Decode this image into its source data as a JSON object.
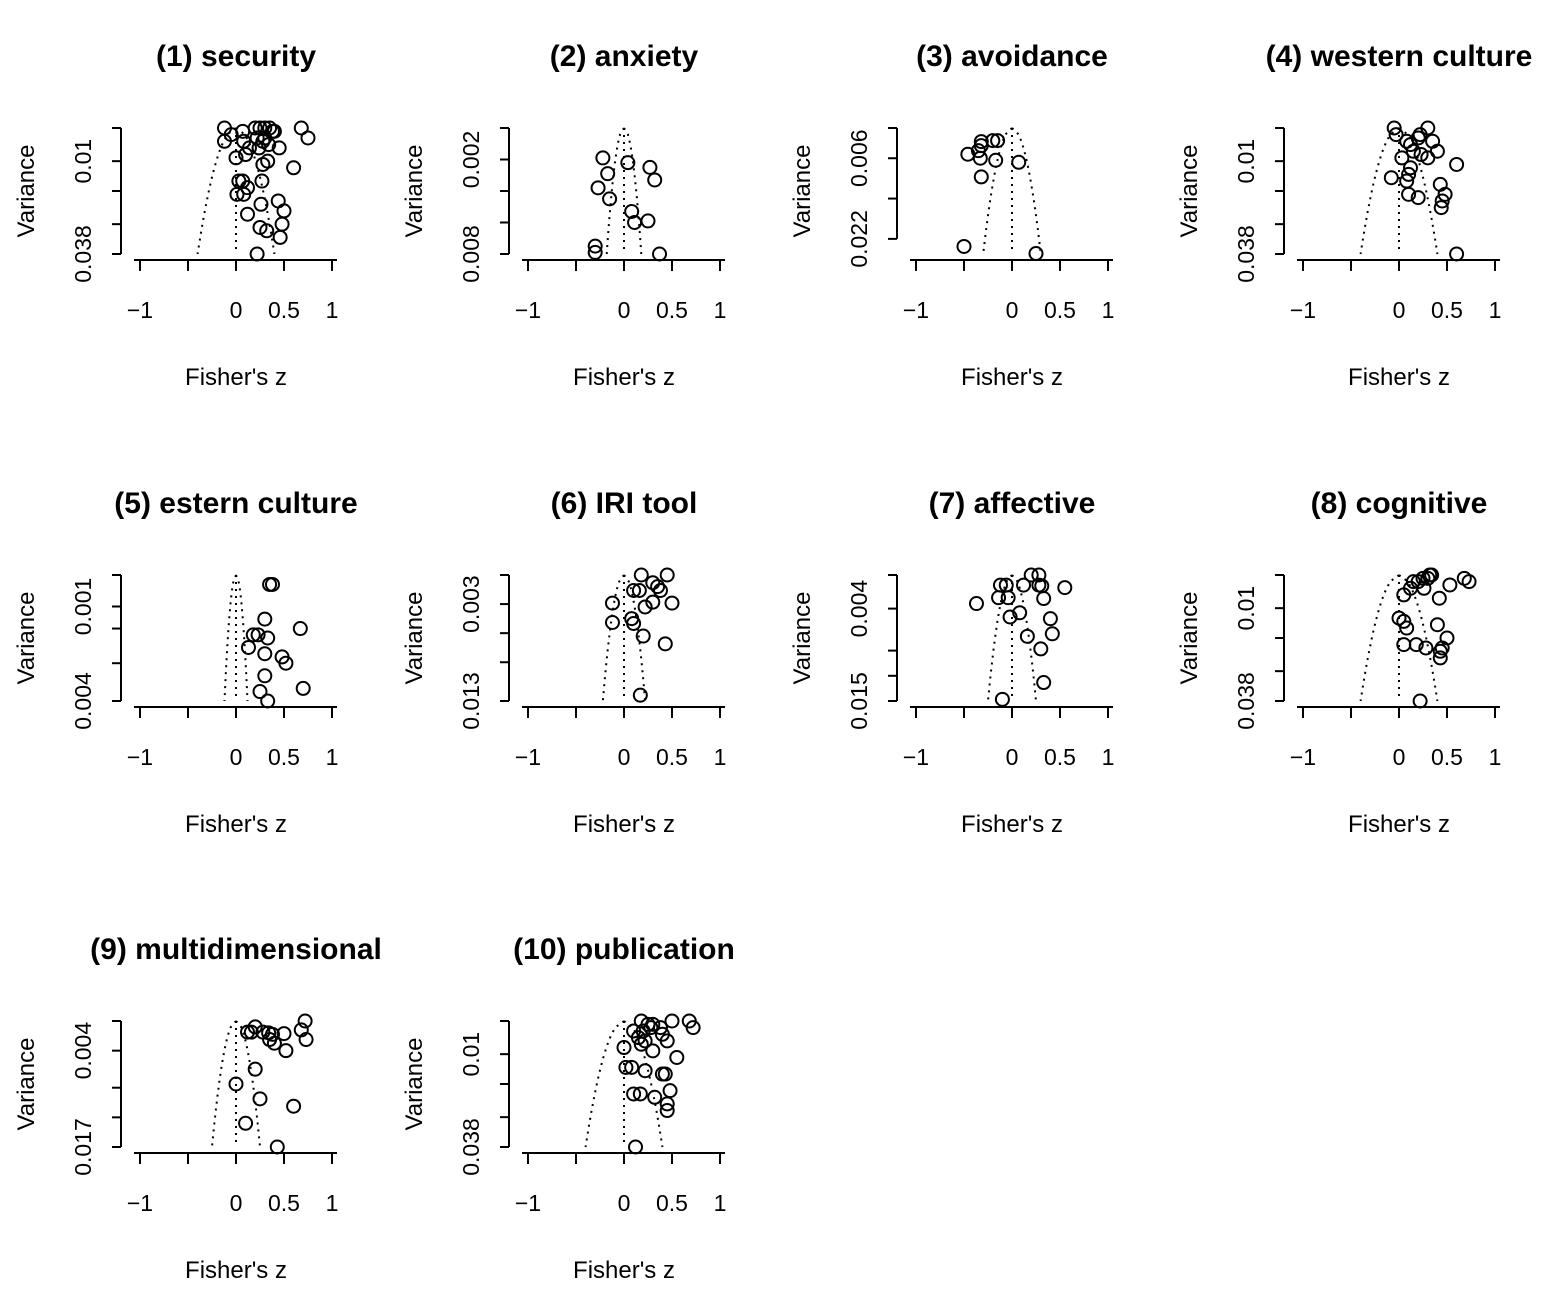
{
  "figure": {
    "xlabel": "Fisher's z",
    "ylabel": "Variance"
  },
  "chart_data": [
    {
      "type": "scatter",
      "title": "(1) security",
      "xlabel": "Fisher's z",
      "ylabel": "Variance",
      "xlim": [
        -1,
        1
      ],
      "xticks": [
        -1,
        0,
        0.5,
        1
      ],
      "xtick_labels": [
        "-1",
        "0",
        "0.5",
        "1"
      ],
      "yticks": [
        0,
        0.01,
        0.019,
        0.029,
        0.038
      ],
      "ytick_labels": [
        "0.01",
        "0.038"
      ],
      "ylim": [
        0,
        0.038
      ],
      "funnel": {
        "center": 0.0,
        "half_width_at_max": 0.4
      },
      "points": [
        [
          -0.12,
          0.0
        ],
        [
          -0.12,
          0.004
        ],
        [
          -0.05,
          0.002
        ],
        [
          0.07,
          0.001
        ],
        [
          0.2,
          0.0
        ],
        [
          0.25,
          0.0
        ],
        [
          0.3,
          0.0
        ],
        [
          0.35,
          0.0
        ],
        [
          0.38,
          0.001
        ],
        [
          0.4,
          0.001
        ],
        [
          0.68,
          0.0
        ],
        [
          0.75,
          0.003
        ],
        [
          0.08,
          0.004
        ],
        [
          0.14,
          0.006
        ],
        [
          0.22,
          0.003
        ],
        [
          0.24,
          0.006
        ],
        [
          0.28,
          0.004
        ],
        [
          0.34,
          0.005
        ],
        [
          0.45,
          0.006
        ],
        [
          0.3,
          0.003
        ],
        [
          0.0,
          0.009
        ],
        [
          0.1,
          0.008
        ],
        [
          0.28,
          0.011
        ],
        [
          0.6,
          0.012
        ],
        [
          0.33,
          0.01
        ],
        [
          0.03,
          0.016
        ],
        [
          0.07,
          0.016
        ],
        [
          0.12,
          0.018
        ],
        [
          0.27,
          0.016
        ],
        [
          0.01,
          0.02
        ],
        [
          0.08,
          0.02
        ],
        [
          0.26,
          0.023
        ],
        [
          0.44,
          0.022
        ],
        [
          0.5,
          0.025
        ],
        [
          0.12,
          0.026
        ],
        [
          0.25,
          0.03
        ],
        [
          0.32,
          0.031
        ],
        [
          0.48,
          0.029
        ],
        [
          0.46,
          0.033
        ],
        [
          0.22,
          0.038
        ]
      ]
    },
    {
      "type": "scatter",
      "title": "(2) anxiety",
      "xlabel": "Fisher's z",
      "ylabel": "Variance",
      "xlim": [
        -1,
        1
      ],
      "xticks": [
        -1,
        0,
        0.5,
        1
      ],
      "xtick_labels": [
        "-1",
        "0",
        "0.5",
        "1"
      ],
      "yticks": [
        0,
        0.002,
        0.004,
        0.006,
        0.008
      ],
      "ytick_labels": [
        "0.002",
        "0.008"
      ],
      "ylim": [
        0,
        0.008
      ],
      "funnel": {
        "center": 0.0,
        "half_width_at_max": 0.18
      },
      "points": [
        [
          -0.22,
          0.0019
        ],
        [
          0.04,
          0.0022
        ],
        [
          0.27,
          0.0025
        ],
        [
          -0.17,
          0.0029
        ],
        [
          0.32,
          0.0033
        ],
        [
          -0.27,
          0.0038
        ],
        [
          -0.15,
          0.0045
        ],
        [
          0.08,
          0.0053
        ],
        [
          0.11,
          0.006
        ],
        [
          0.25,
          0.0059
        ],
        [
          -0.3,
          0.0075
        ],
        [
          -0.3,
          0.0079
        ],
        [
          0.37,
          0.008
        ]
      ]
    },
    {
      "type": "scatter",
      "title": "(3) avoidance",
      "xlabel": "Fisher's z",
      "ylabel": "Variance",
      "xlim": [
        -1,
        1
      ],
      "xticks": [
        -1,
        0,
        0.5,
        1
      ],
      "xtick_labels": [
        "-1",
        "0",
        "0.5",
        "1"
      ],
      "yticks": [
        0,
        0.006,
        0.014,
        0.022
      ],
      "ytick_labels": [
        "0.006",
        "0.022"
      ],
      "ylim": [
        0,
        0.025
      ],
      "funnel": {
        "center": 0.0,
        "half_width_at_max": 0.3
      },
      "points": [
        [
          -0.35,
          0.0045
        ],
        [
          -0.32,
          0.0027
        ],
        [
          -0.32,
          0.0035
        ],
        [
          -0.2,
          0.0025
        ],
        [
          -0.15,
          0.0025
        ],
        [
          -0.33,
          0.006
        ],
        [
          -0.46,
          0.0052
        ],
        [
          -0.17,
          0.0064
        ],
        [
          0.07,
          0.0068
        ],
        [
          -0.32,
          0.0097
        ],
        [
          -0.5,
          0.0235
        ],
        [
          0.25,
          0.0249
        ]
      ]
    },
    {
      "type": "scatter",
      "title": "(4) western culture",
      "xlabel": "Fisher's z",
      "ylabel": "Variance",
      "xlim": [
        -1,
        1
      ],
      "xticks": [
        -1,
        0,
        0.5,
        1
      ],
      "xtick_labels": [
        "-1",
        "0",
        "0.5",
        "1"
      ],
      "yticks": [
        0,
        0.01,
        0.019,
        0.029,
        0.038
      ],
      "ytick_labels": [
        "0.01",
        "0.038"
      ],
      "ylim": [
        0,
        0.038
      ],
      "funnel": {
        "center": 0.0,
        "half_width_at_max": 0.4
      },
      "points": [
        [
          -0.05,
          0.0
        ],
        [
          -0.03,
          0.002
        ],
        [
          0.3,
          0.0
        ],
        [
          0.22,
          0.002
        ],
        [
          0.2,
          0.003
        ],
        [
          0.08,
          0.004
        ],
        [
          0.12,
          0.005
        ],
        [
          0.35,
          0.004
        ],
        [
          0.15,
          0.007
        ],
        [
          0.23,
          0.008
        ],
        [
          0.3,
          0.009
        ],
        [
          0.4,
          0.007
        ],
        [
          0.03,
          0.009
        ],
        [
          0.12,
          0.012
        ],
        [
          0.1,
          0.014
        ],
        [
          0.6,
          0.011
        ],
        [
          -0.08,
          0.015
        ],
        [
          0.08,
          0.016
        ],
        [
          0.43,
          0.017
        ],
        [
          0.1,
          0.02
        ],
        [
          0.2,
          0.021
        ],
        [
          0.48,
          0.02
        ],
        [
          0.45,
          0.022
        ],
        [
          0.44,
          0.024
        ],
        [
          0.6,
          0.038
        ]
      ]
    },
    {
      "type": "scatter",
      "title": "(5) estern culture",
      "xlabel": "Fisher's z",
      "ylabel": "Variance",
      "xlim": [
        -1,
        1
      ],
      "xticks": [
        -1,
        0,
        0.5,
        1
      ],
      "xtick_labels": [
        "-1",
        "0",
        "0.5",
        "1"
      ],
      "yticks": [
        0,
        0.001,
        0.0017,
        0.0028,
        0.004
      ],
      "ytick_labels": [
        "0.001",
        "0.004"
      ],
      "ylim": [
        0,
        0.004
      ],
      "funnel": {
        "center": 0.0,
        "half_width_at_max": 0.12
      },
      "points": [
        [
          0.35,
          0.0003
        ],
        [
          0.38,
          0.0003
        ],
        [
          0.3,
          0.0014
        ],
        [
          0.67,
          0.0017
        ],
        [
          0.18,
          0.0019
        ],
        [
          0.23,
          0.0019
        ],
        [
          0.33,
          0.002
        ],
        [
          0.13,
          0.0023
        ],
        [
          0.3,
          0.0025
        ],
        [
          0.48,
          0.0026
        ],
        [
          0.52,
          0.0028
        ],
        [
          0.3,
          0.0032
        ],
        [
          0.7,
          0.0036
        ],
        [
          0.25,
          0.0037
        ],
        [
          0.33,
          0.004
        ]
      ]
    },
    {
      "type": "scatter",
      "title": "(6) IRI tool",
      "xlabel": "Fisher's z",
      "ylabel": "Variance",
      "xlim": [
        -1,
        1
      ],
      "xticks": [
        -1,
        0,
        0.5,
        1
      ],
      "xtick_labels": [
        "-1",
        "0",
        "0.5",
        "1"
      ],
      "yticks": [
        0,
        0.003,
        0.006,
        0.009,
        0.013
      ],
      "ytick_labels": [
        "0.003",
        "0.013"
      ],
      "ylim": [
        0,
        0.013
      ],
      "funnel": {
        "center": 0.0,
        "half_width_at_max": 0.22
      },
      "points": [
        [
          0.18,
          0.0
        ],
        [
          0.45,
          0.0
        ],
        [
          0.3,
          0.0008
        ],
        [
          0.35,
          0.0012
        ],
        [
          0.1,
          0.0016
        ],
        [
          0.16,
          0.0016
        ],
        [
          0.38,
          0.0016
        ],
        [
          -0.12,
          0.0029
        ],
        [
          0.3,
          0.0028
        ],
        [
          0.5,
          0.0029
        ],
        [
          0.22,
          0.0033
        ],
        [
          0.08,
          0.0045
        ],
        [
          -0.12,
          0.0049
        ],
        [
          0.1,
          0.005
        ],
        [
          0.2,
          0.0063
        ],
        [
          0.43,
          0.0071
        ],
        [
          0.17,
          0.0124
        ]
      ]
    },
    {
      "type": "scatter",
      "title": "(7) affective",
      "xlabel": "Fisher's z",
      "ylabel": "Variance",
      "xlim": [
        -1,
        1
      ],
      "xticks": [
        -1,
        0,
        0.5,
        1
      ],
      "xtick_labels": [
        "-1",
        "0",
        "0.5",
        "1"
      ],
      "yticks": [
        0,
        0.004,
        0.009,
        0.012,
        0.015
      ],
      "ytick_labels": [
        "0.004",
        "0.015"
      ],
      "ylim": [
        0,
        0.015
      ],
      "funnel": {
        "center": 0.0,
        "half_width_at_max": 0.25
      },
      "points": [
        [
          0.2,
          0.0
        ],
        [
          0.28,
          0.0
        ],
        [
          -0.12,
          0.0012
        ],
        [
          -0.06,
          0.0012
        ],
        [
          0.12,
          0.0012
        ],
        [
          0.28,
          0.0012
        ],
        [
          0.55,
          0.0015
        ],
        [
          0.31,
          0.0013
        ],
        [
          -0.14,
          0.0027
        ],
        [
          -0.04,
          0.0027
        ],
        [
          0.33,
          0.0028
        ],
        [
          -0.37,
          0.0034
        ],
        [
          0.08,
          0.0045
        ],
        [
          -0.02,
          0.005
        ],
        [
          0.4,
          0.0052
        ],
        [
          0.16,
          0.0073
        ],
        [
          0.42,
          0.007
        ],
        [
          0.3,
          0.0088
        ],
        [
          0.33,
          0.0128
        ],
        [
          -0.1,
          0.0148
        ]
      ]
    },
    {
      "type": "scatter",
      "title": "(8) cognitive",
      "xlabel": "Fisher's z",
      "ylabel": "Variance",
      "xlim": [
        -1,
        1
      ],
      "xticks": [
        -1,
        0,
        0.5,
        1
      ],
      "xtick_labels": [
        "-1",
        "0",
        "0.5",
        "1"
      ],
      "yticks": [
        0,
        0.01,
        0.019,
        0.029,
        0.038
      ],
      "ytick_labels": [
        "0.01",
        "0.038"
      ],
      "ylim": [
        0,
        0.038
      ],
      "funnel": {
        "center": 0.0,
        "half_width_at_max": 0.4
      },
      "points": [
        [
          0.32,
          0.0
        ],
        [
          0.34,
          0.0
        ],
        [
          0.3,
          0.001
        ],
        [
          0.25,
          0.001
        ],
        [
          0.2,
          0.002
        ],
        [
          0.68,
          0.001
        ],
        [
          0.73,
          0.002
        ],
        [
          0.15,
          0.002
        ],
        [
          0.53,
          0.003
        ],
        [
          0.12,
          0.004
        ],
        [
          0.26,
          0.004
        ],
        [
          0.05,
          0.006
        ],
        [
          0.42,
          0.007
        ],
        [
          0.0,
          0.013
        ],
        [
          0.05,
          0.014
        ],
        [
          0.08,
          0.016
        ],
        [
          0.4,
          0.015
        ],
        [
          0.5,
          0.019
        ],
        [
          0.05,
          0.021
        ],
        [
          0.18,
          0.021
        ],
        [
          0.28,
          0.022
        ],
        [
          0.45,
          0.022
        ],
        [
          0.43,
          0.023
        ],
        [
          0.43,
          0.025
        ],
        [
          0.22,
          0.038
        ]
      ]
    },
    {
      "type": "scatter",
      "title": "(9) multidimensional",
      "xlabel": "Fisher's z",
      "ylabel": "Variance",
      "xlim": [
        -1,
        1
      ],
      "xticks": [
        -1,
        0,
        0.5,
        1
      ],
      "xtick_labels": [
        "-1",
        "0",
        "0.5",
        "1"
      ],
      "yticks": [
        0,
        0.004,
        0.009,
        0.013,
        0.017
      ],
      "ytick_labels": [
        "0.004",
        "0.017"
      ],
      "ylim": [
        0,
        0.017
      ],
      "funnel": {
        "center": 0.0,
        "half_width_at_max": 0.25
      },
      "points": [
        [
          0.2,
          0.0008
        ],
        [
          0.72,
          0.0
        ],
        [
          0.68,
          0.0012
        ],
        [
          0.73,
          0.0025
        ],
        [
          0.12,
          0.0015
        ],
        [
          0.16,
          0.0015
        ],
        [
          0.28,
          0.0015
        ],
        [
          0.34,
          0.0016
        ],
        [
          0.38,
          0.0018
        ],
        [
          0.5,
          0.0017
        ],
        [
          0.35,
          0.0025
        ],
        [
          0.4,
          0.003
        ],
        [
          0.52,
          0.004
        ],
        [
          0.2,
          0.0065
        ],
        [
          0.0,
          0.0085
        ],
        [
          0.25,
          0.0105
        ],
        [
          0.6,
          0.0115
        ],
        [
          0.1,
          0.0138
        ],
        [
          0.43,
          0.017
        ]
      ]
    },
    {
      "type": "scatter",
      "title": "(10) publication",
      "xlabel": "Fisher's z",
      "ylabel": "Variance",
      "xlim": [
        -1,
        1
      ],
      "xticks": [
        -1,
        0,
        0.5,
        1
      ],
      "xtick_labels": [
        "-1",
        "0",
        "0.5",
        "1"
      ],
      "yticks": [
        0,
        0.01,
        0.019,
        0.029,
        0.038
      ],
      "ytick_labels": [
        "0.01",
        "0.038"
      ],
      "ylim": [
        0,
        0.038
      ],
      "funnel": {
        "center": 0.0,
        "half_width_at_max": 0.4
      },
      "points": [
        [
          0.18,
          0.0
        ],
        [
          0.25,
          0.001
        ],
        [
          0.3,
          0.001
        ],
        [
          0.38,
          0.002
        ],
        [
          0.5,
          0.0
        ],
        [
          0.68,
          0.0
        ],
        [
          0.72,
          0.002
        ],
        [
          0.1,
          0.003
        ],
        [
          0.2,
          0.003
        ],
        [
          0.28,
          0.002
        ],
        [
          0.15,
          0.005
        ],
        [
          0.22,
          0.006
        ],
        [
          0.4,
          0.004
        ],
        [
          0.0,
          0.008
        ],
        [
          0.18,
          0.007
        ],
        [
          0.3,
          0.009
        ],
        [
          0.45,
          0.006
        ],
        [
          0.55,
          0.011
        ],
        [
          0.02,
          0.014
        ],
        [
          0.08,
          0.014
        ],
        [
          0.22,
          0.015
        ],
        [
          0.4,
          0.016
        ],
        [
          0.43,
          0.016
        ],
        [
          0.1,
          0.022
        ],
        [
          0.17,
          0.022
        ],
        [
          0.32,
          0.023
        ],
        [
          0.48,
          0.021
        ],
        [
          0.45,
          0.025
        ],
        [
          0.45,
          0.027
        ],
        [
          0.12,
          0.038
        ]
      ]
    }
  ]
}
